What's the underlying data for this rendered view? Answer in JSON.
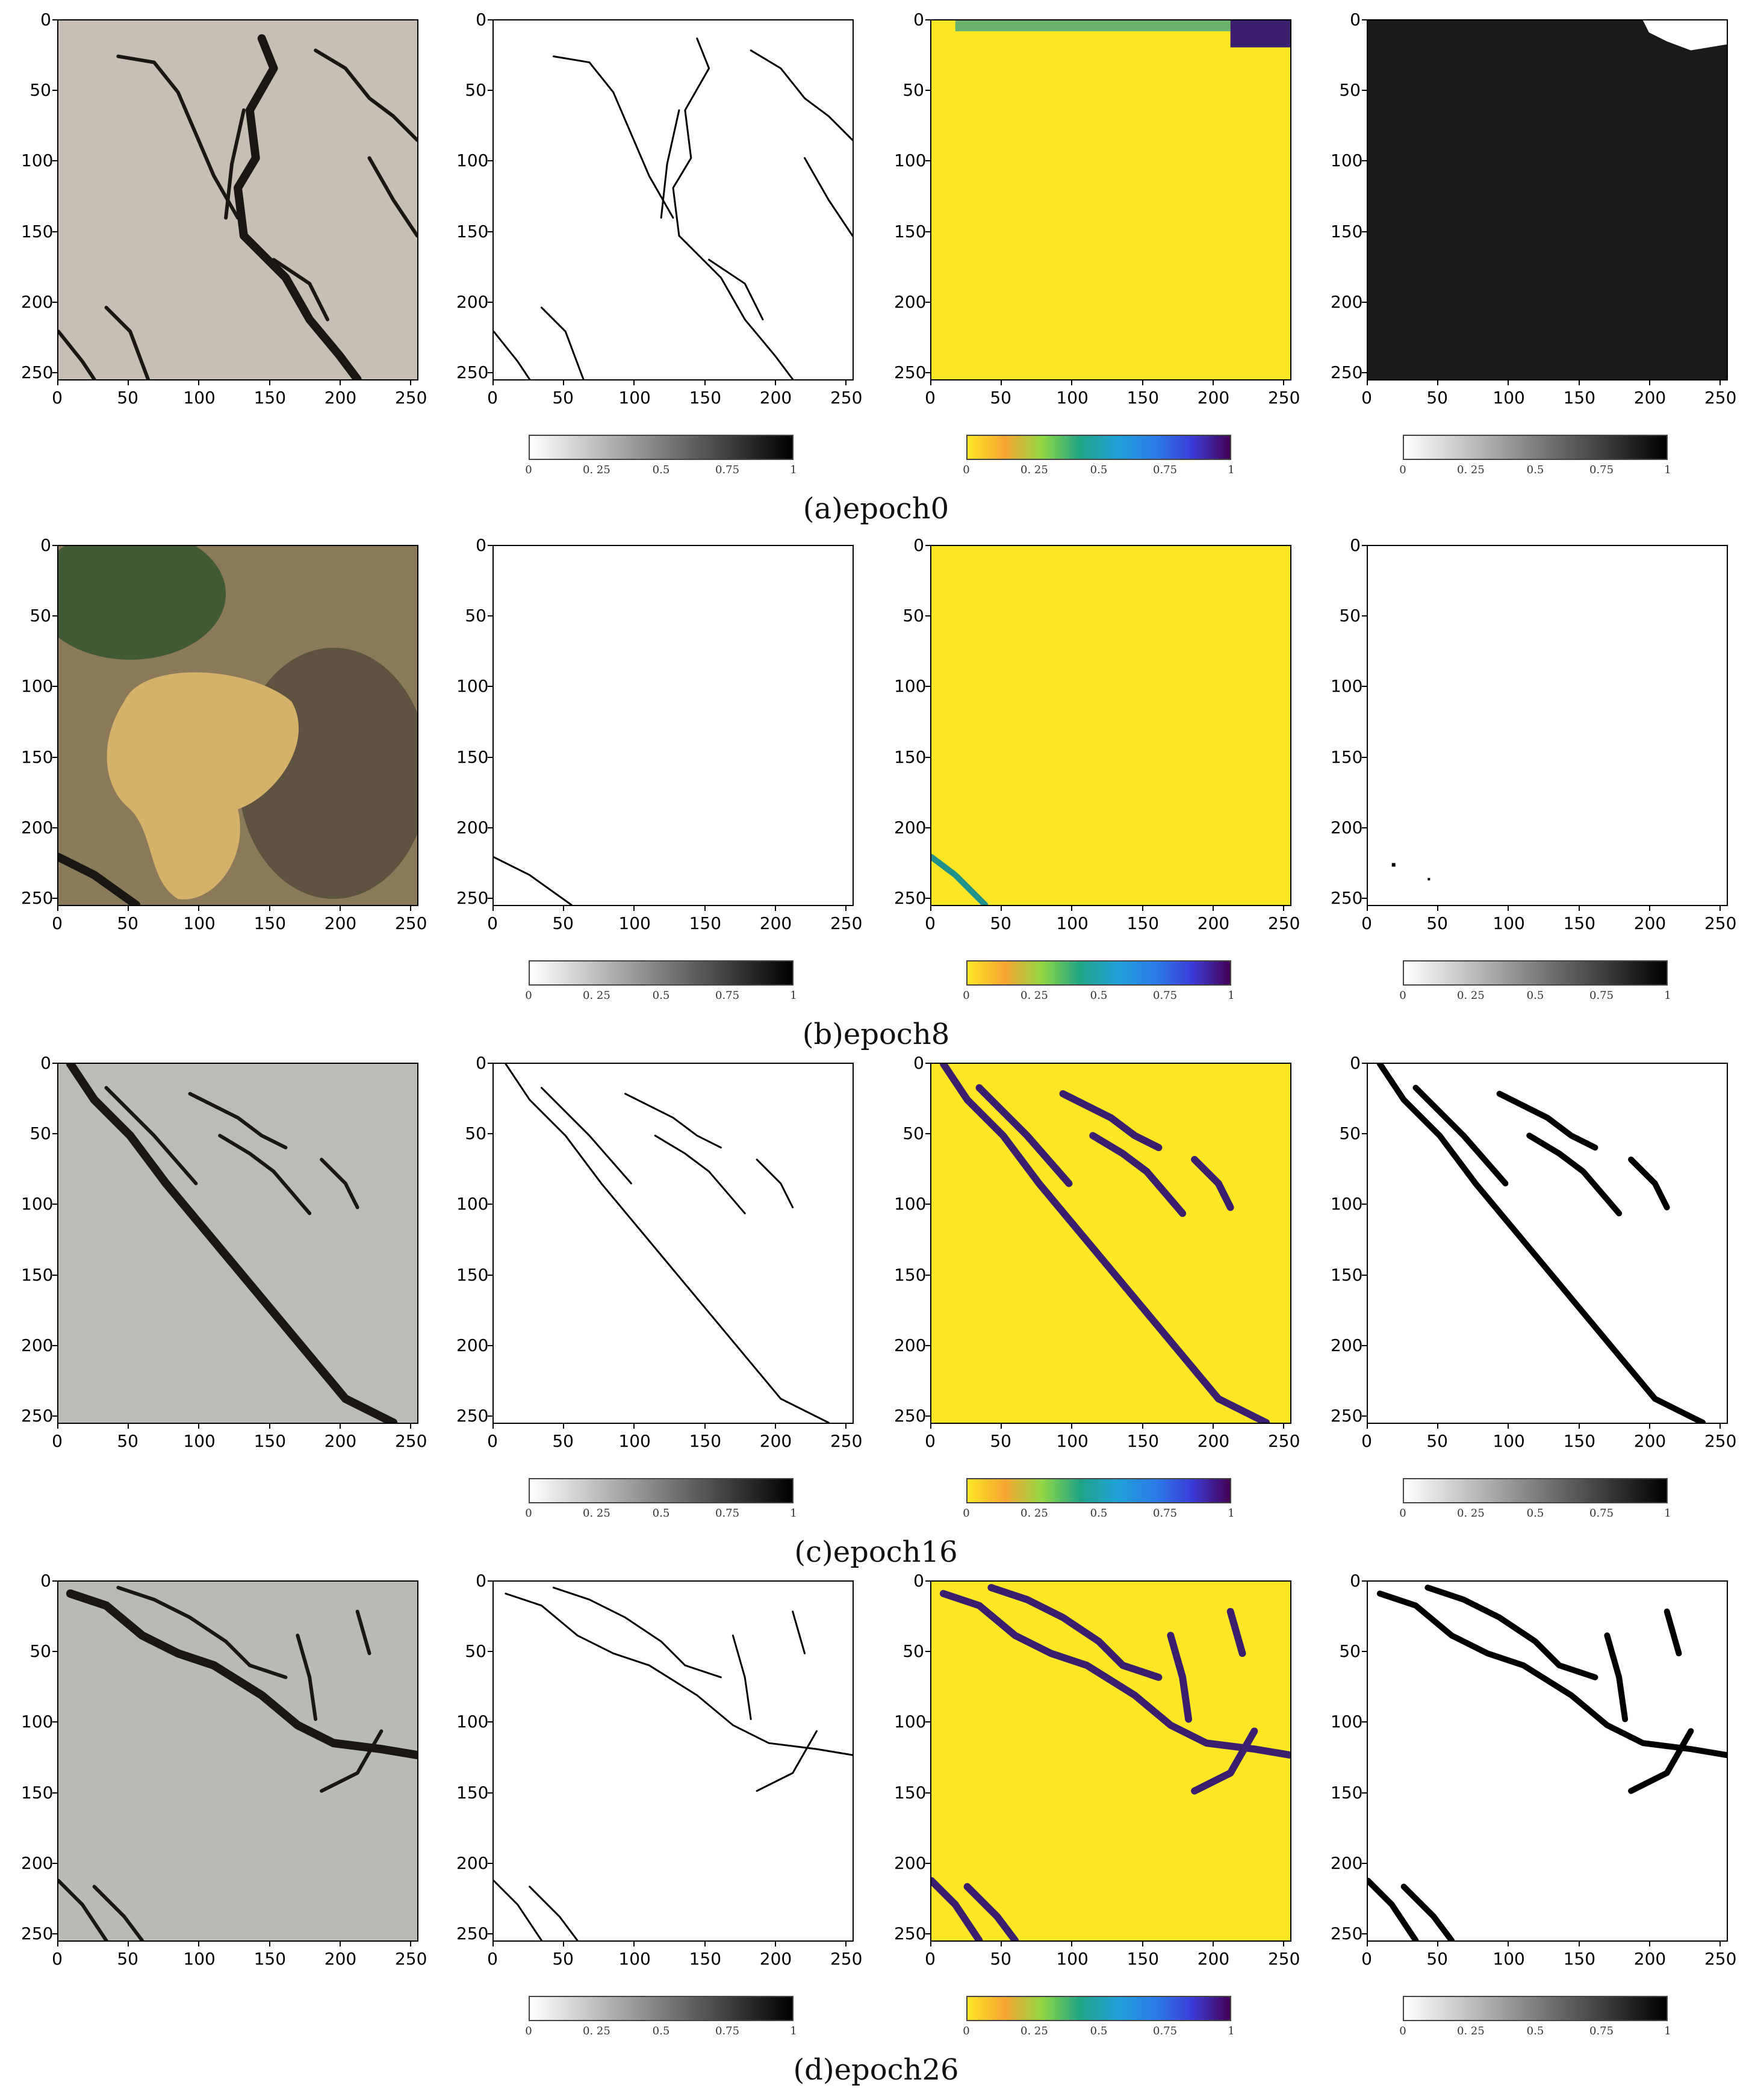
{
  "figure": {
    "tick_values": [
      0,
      50,
      100,
      150,
      200,
      250
    ],
    "colorbar_ticks": [
      "0",
      "0. 25",
      "0.5",
      "0.75",
      "1"
    ],
    "colorbar_gray": {
      "from": "#ffffff",
      "to": "#000000"
    },
    "colorbar_viridis": [
      "#fde725",
      "#f6a531",
      "#90d743",
      "#20a486",
      "#1fa0d8",
      "#2b7de8",
      "#3b3bd6",
      "#440154"
    ],
    "colors": {
      "crack": "#000000",
      "pred_bg": "#fde725",
      "pred_crack": "#3b1f6e",
      "mask_bg_empty": "#1a1a1a"
    },
    "rows": [
      {
        "caption": "(a)epoch0",
        "image_tone": "#c8bfb4",
        "pred_fill": "mostly-yellow",
        "mask_fill": "black"
      },
      {
        "caption": "(b)epoch8",
        "image_tone": "#8a7a5a",
        "pred_fill": "yellow",
        "mask_fill": "white"
      },
      {
        "caption": "(c)epoch16",
        "image_tone": "#b9bdb5",
        "pred_fill": "yellow",
        "mask_fill": "white"
      },
      {
        "caption": "(d)epoch26",
        "image_tone": "#b8bbb3",
        "pred_fill": "yellow",
        "mask_fill": "white"
      }
    ],
    "panels": [
      "input-image",
      "ground-truth",
      "prediction-heatmap",
      "binary-mask"
    ]
  }
}
